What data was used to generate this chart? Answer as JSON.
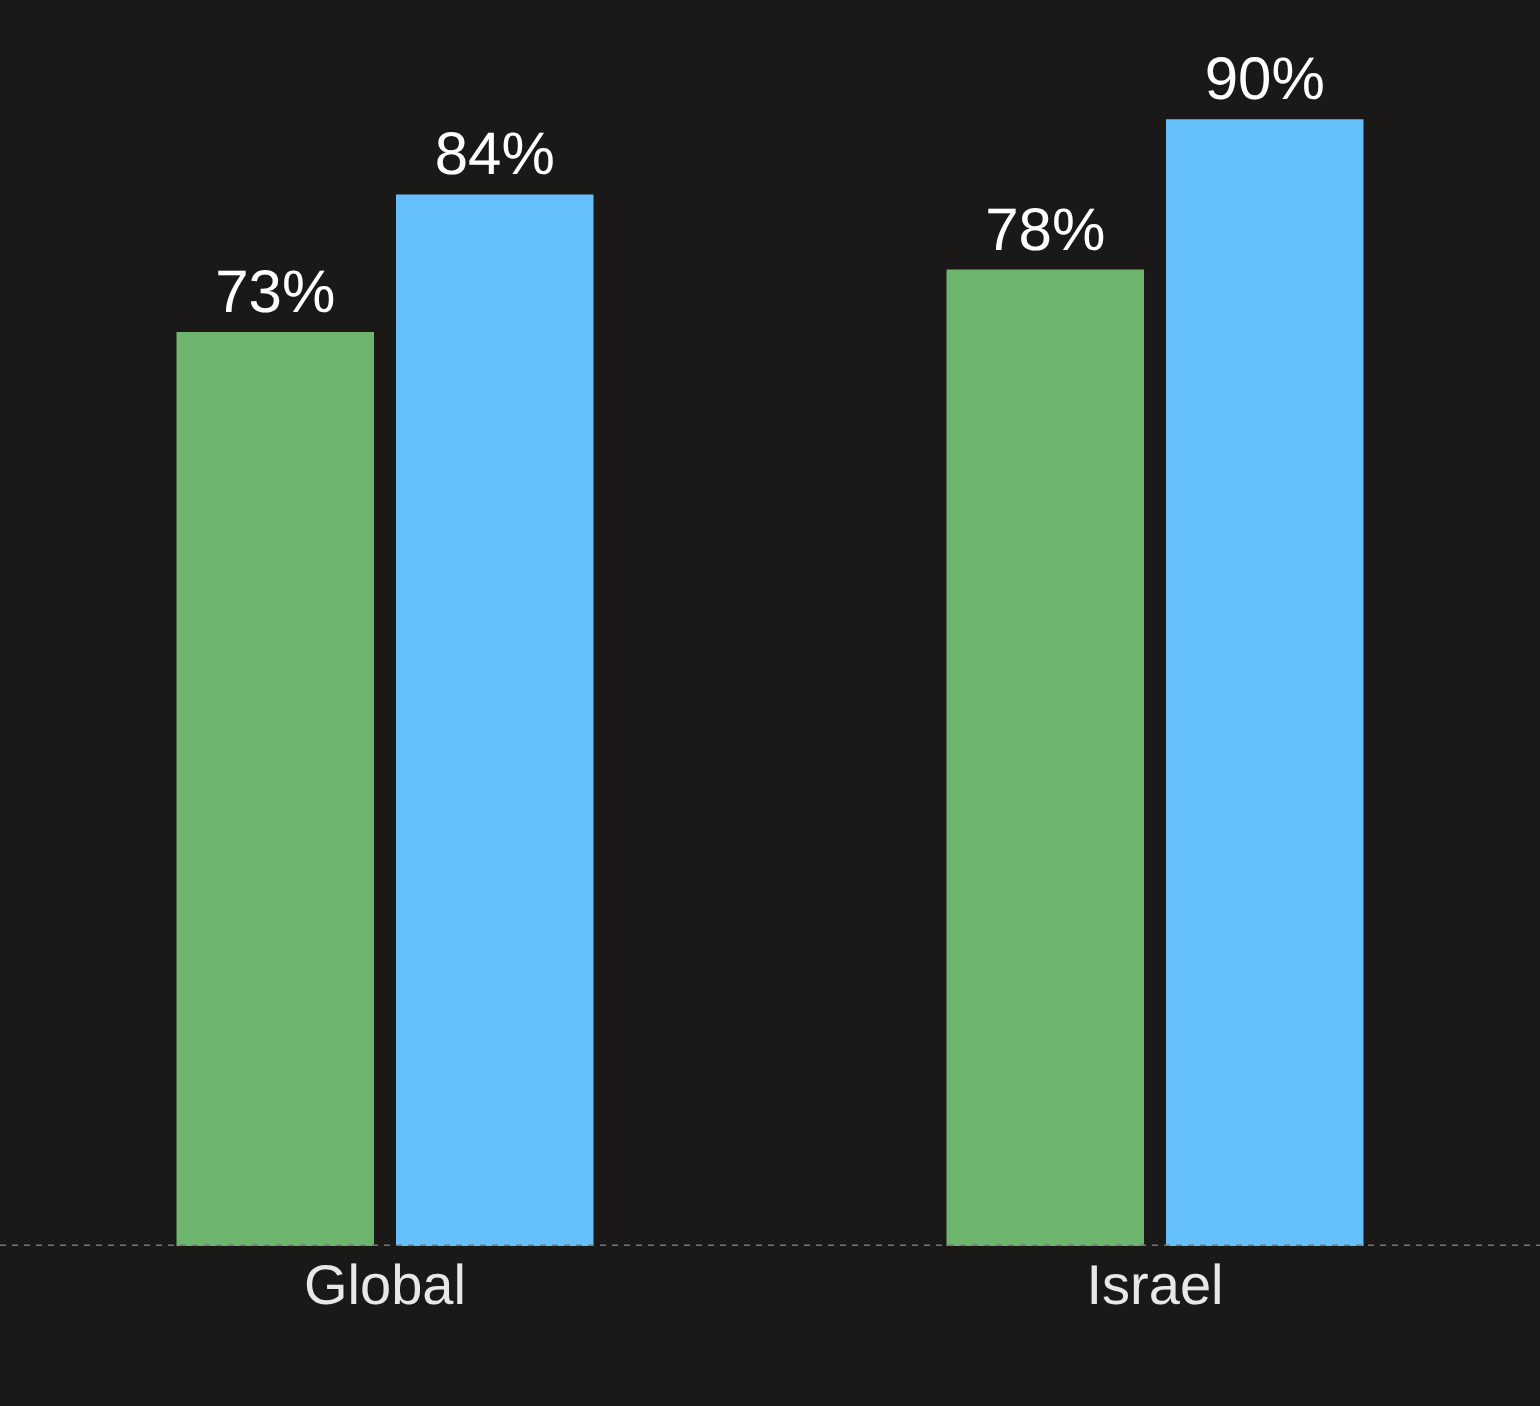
{
  "chart_data": {
    "type": "bar",
    "categories": [
      "Global",
      "Israel"
    ],
    "series": [
      {
        "color": "#6db56d",
        "values": [
          73,
          78
        ],
        "value_labels": [
          "73%",
          "78%"
        ]
      },
      {
        "color": "#66c0fa",
        "values": [
          84,
          90
        ],
        "value_labels": [
          "84%",
          "90%"
        ]
      }
    ],
    "tick_labels": "x",
    "grid": false,
    "legend": false
  }
}
